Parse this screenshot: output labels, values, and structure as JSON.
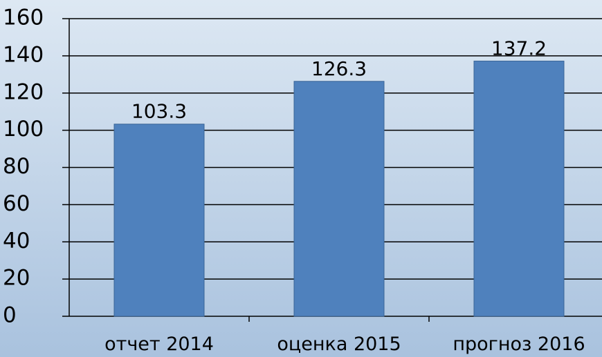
{
  "chart_data": {
    "type": "bar",
    "categories": [
      "отчет 2014",
      "оценка 2015",
      "прогноз 2016"
    ],
    "values": [
      103.3,
      126.3,
      137.2
    ],
    "color": "#4f81bd",
    "ylim": [
      0,
      160
    ],
    "yticks": [
      0,
      20,
      40,
      60,
      80,
      100,
      120,
      140,
      160
    ],
    "grid": true
  }
}
